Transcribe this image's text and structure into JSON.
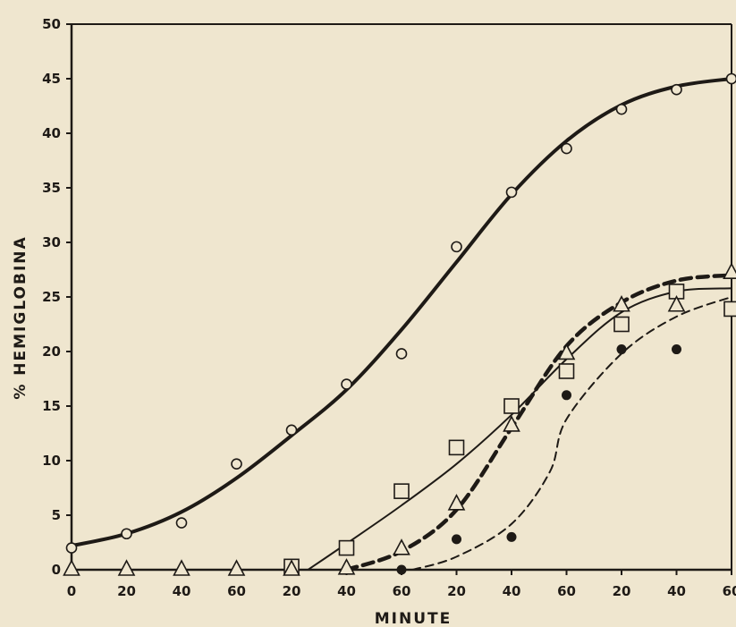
{
  "chart_data": {
    "type": "line",
    "title": "",
    "xlabel": "MINUTE",
    "ylabel": "% HEMIGLOBINA",
    "ylim": [
      0,
      50
    ],
    "yticks": [
      "0",
      "5",
      "10",
      "15",
      "20",
      "25",
      "30",
      "35",
      "40",
      "45",
      "50"
    ],
    "xticks": [
      "0",
      "20",
      "40",
      "60",
      "20",
      "40",
      "60",
      "20",
      "40",
      "60",
      "20",
      "40",
      "60"
    ],
    "x_note": "x positions 0-12 are the printed tick slots; elapsed minutes = slot x 20",
    "grid": false,
    "legend": "none",
    "series": [
      {
        "marker": "circle",
        "line_style": "solid-thick",
        "points": [
          [
            0,
            2
          ],
          [
            1,
            3.3
          ],
          [
            2,
            4.3
          ],
          [
            3,
            9.7
          ],
          [
            4,
            12.8
          ],
          [
            5,
            17
          ],
          [
            6,
            19.8
          ],
          [
            7,
            29.6
          ],
          [
            8,
            34.6
          ],
          [
            9,
            38.6
          ],
          [
            10,
            42.2
          ],
          [
            11,
            44
          ],
          [
            12,
            45
          ]
        ],
        "curve": [
          [
            0,
            2.2
          ],
          [
            1,
            3.3
          ],
          [
            2,
            5.3
          ],
          [
            3,
            8.4
          ],
          [
            4,
            12.3
          ],
          [
            5,
            16.5
          ],
          [
            6,
            22
          ],
          [
            7,
            28.2
          ],
          [
            8,
            34.4
          ],
          [
            9,
            39.3
          ],
          [
            10,
            42.6
          ],
          [
            11,
            44.3
          ],
          [
            12,
            45
          ]
        ]
      },
      {
        "marker": "square",
        "line_style": "solid-thin",
        "points": [
          [
            4,
            0.3
          ],
          [
            5,
            2
          ],
          [
            6,
            7.2
          ],
          [
            7,
            11.2
          ],
          [
            8,
            15
          ],
          [
            9,
            18.2
          ],
          [
            10,
            22.5
          ],
          [
            11,
            25.5
          ],
          [
            12,
            23.9
          ]
        ],
        "curve": [
          [
            4.3,
            0
          ],
          [
            5,
            2.4
          ],
          [
            6,
            5.9
          ],
          [
            7,
            9.7
          ],
          [
            8,
            14.2
          ],
          [
            9,
            19.3
          ],
          [
            10,
            23.6
          ],
          [
            11,
            25.5
          ],
          [
            12,
            25.8
          ]
        ]
      },
      {
        "marker": "triangle",
        "line_style": "dashed-thick",
        "points": [
          [
            0,
            0
          ],
          [
            1,
            0
          ],
          [
            2,
            0
          ],
          [
            3,
            0
          ],
          [
            4,
            0
          ],
          [
            5,
            0.1
          ],
          [
            6,
            1.9
          ],
          [
            7,
            6
          ],
          [
            8,
            13.2
          ],
          [
            9,
            19.8
          ],
          [
            10,
            24.2
          ],
          [
            11,
            24.2
          ],
          [
            12,
            27.2
          ]
        ],
        "curve": [
          [
            5,
            0
          ],
          [
            6,
            1.7
          ],
          [
            7,
            5.5
          ],
          [
            8,
            13
          ],
          [
            9,
            20.5
          ],
          [
            10,
            24.5
          ],
          [
            11,
            26.5
          ],
          [
            12,
            27
          ]
        ]
      },
      {
        "marker": "filled-circle",
        "line_style": "dashed-thin",
        "points": [
          [
            6,
            0
          ],
          [
            7,
            2.8
          ],
          [
            8,
            3
          ],
          [
            9,
            16
          ],
          [
            10,
            20.2
          ],
          [
            11,
            20.2
          ]
        ],
        "curve": [
          [
            6.2,
            0
          ],
          [
            7,
            1.2
          ],
          [
            8,
            4.2
          ],
          [
            8.7,
            9
          ],
          [
            9,
            13.8
          ],
          [
            10,
            19.8
          ],
          [
            11,
            23.2
          ],
          [
            12,
            25
          ]
        ]
      }
    ],
    "colors": {
      "ink": "#1e1a16",
      "paper": "#efe6cf"
    }
  }
}
